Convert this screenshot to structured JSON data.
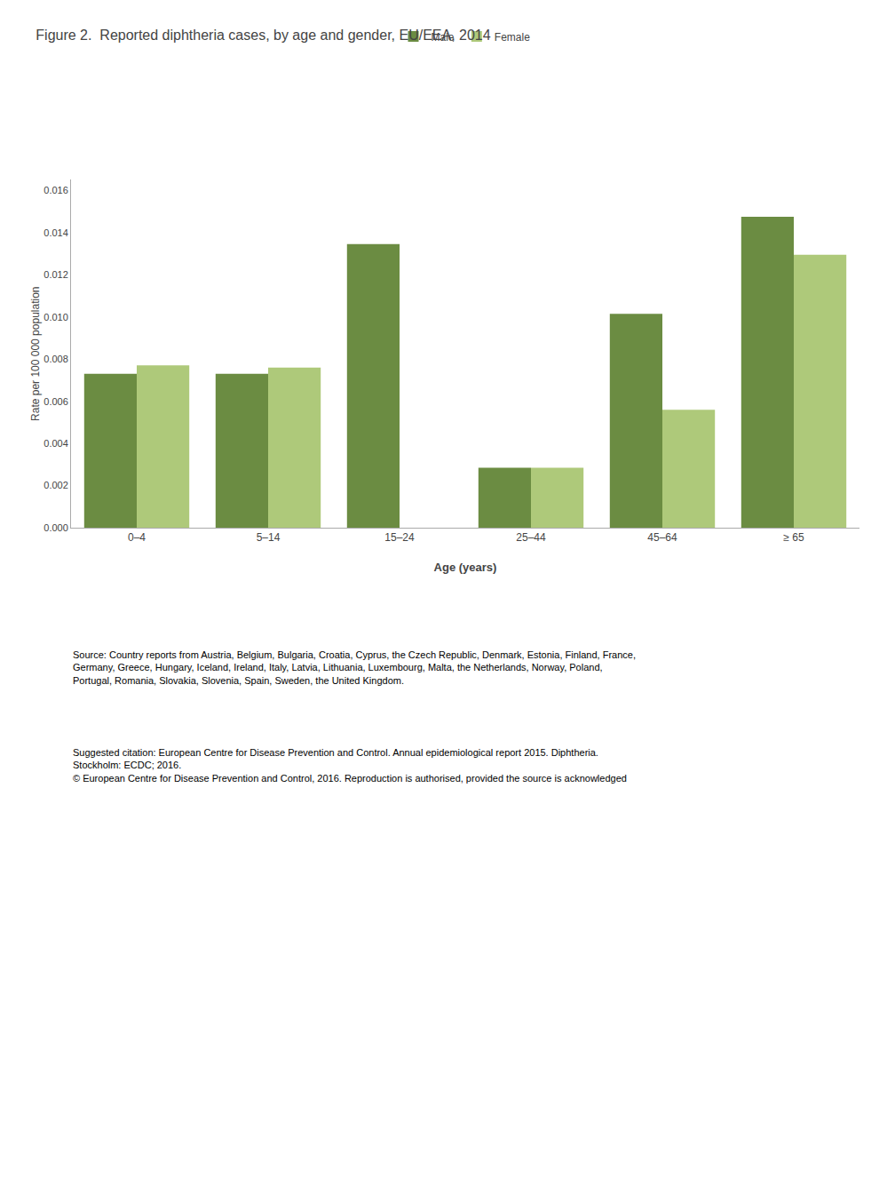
{
  "chart_data": {
    "type": "bar",
    "title": "Figure 2.  Reported diphtheria cases, by age and gender, EU/EEA, 2014",
    "categories": [
      "0–4",
      "5–14",
      "15–24",
      "25–44",
      "45–64",
      "≥ 65"
    ],
    "series": [
      {
        "name": "Male",
        "color": "#6b8c42",
        "values": [
          0.0073,
          0.0073,
          0.01345,
          0.00285,
          0.01015,
          0.01475
        ]
      },
      {
        "name": "Female",
        "color": "#aec97a",
        "values": [
          0.0077,
          0.0076,
          0.0,
          0.00285,
          0.0056,
          0.01295
        ]
      }
    ],
    "xlabel": "Age (years)",
    "ylabel": "Rate per 100 000 population",
    "ylim": [
      0,
      0.0165
    ],
    "yticks": [
      {
        "value": 0.0,
        "label": "0.000"
      },
      0.002,
      0.004,
      0.006,
      0.008,
      {
        "value": 0.01,
        "label": "0.010"
      },
      0.012,
      0.014,
      0.016
    ],
    "grid": false,
    "legend": "top",
    "annotations": [
      "Source: Country reports from Austria, Belgium, Bulgaria, Croatia, Cyprus, the Czech Republic, Denmark, Estonia, Finland, France,\nGermany, Greece, Hungary, Iceland, Ireland, Italy, Latvia, Lithuania, Luxembourg, Malta, the Netherlands, Norway, Poland,\nPortugal, Romania, Slovakia, Slovenia, Spain, Sweden, the United Kingdom.",
      "Suggested citation: European Centre for Disease Prevention and Control. Annual epidemiological report 2015. Diphtheria.\nStockholm: ECDC; 2016.\n© European Centre for Disease Prevention and Control, 2016. Reproduction is authorised, provided the source is acknowledged"
    ]
  }
}
